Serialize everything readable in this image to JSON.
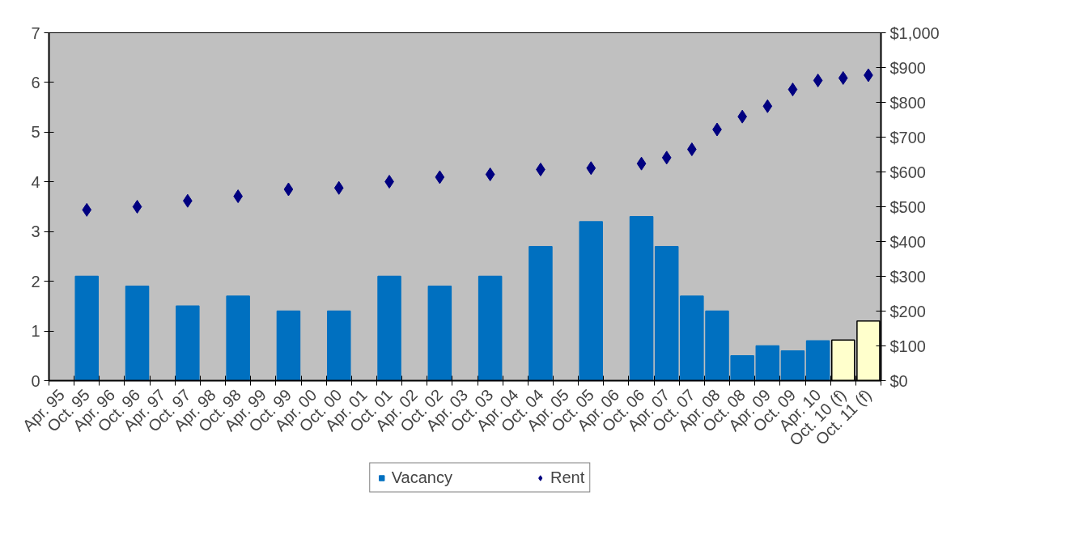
{
  "chart_data": {
    "type": "bar",
    "categories": [
      "Apr. 95",
      "Oct. 95",
      "Apr. 96",
      "Oct. 96",
      "Apr. 97",
      "Oct. 97",
      "Apr. 98",
      "Oct. 98",
      "Apr. 99",
      "Oct. 99",
      "Apr. 00",
      "Oct. 00",
      "Apr. 01",
      "Oct. 01",
      "Apr. 02",
      "Oct. 02",
      "Apr. 03",
      "Oct. 03",
      "Apr. 04",
      "Oct. 04",
      "Apr. 05",
      "Oct. 05",
      "Apr. 06",
      "Oct. 06",
      "Apr. 07",
      "Oct. 07",
      "Apr. 08",
      "Oct. 08",
      "Apr. 09",
      "Oct. 09",
      "Apr. 10",
      "Oct. 10 (f)",
      "Oct. 11 (f)"
    ],
    "series": [
      {
        "name": "Vacancy",
        "color": "#0070c0",
        "colors": [
          "#0070c0",
          "#0070c0",
          "#0070c0",
          "#0070c0",
          "#0070c0",
          "#0070c0",
          "#0070c0",
          "#0070c0",
          "#0070c0",
          "#0070c0",
          "#0070c0",
          "#0070c0",
          "#0070c0",
          "#0070c0",
          "#0070c0",
          "#0070c0",
          "#0070c0",
          "#0070c0",
          "#0070c0",
          "#0070c0",
          "#0070c0",
          "#0070c0",
          "#0070c0",
          "#0070c0",
          "#0070c0",
          "#0070c0",
          "#0070c0",
          "#0070c0",
          "#0070c0",
          "#0070c0",
          "#0070c0",
          "#ffffcc",
          "#ffffcc"
        ],
        "values": [
          null,
          2.1,
          null,
          1.9,
          null,
          1.5,
          null,
          1.7,
          null,
          1.4,
          null,
          1.4,
          null,
          2.1,
          null,
          1.9,
          null,
          2.1,
          null,
          2.7,
          null,
          3.2,
          null,
          3.3,
          2.7,
          1.7,
          1.4,
          0.5,
          0.7,
          0.6,
          0.8,
          0.82,
          1.2
        ]
      },
      {
        "name": "Rent",
        "type": "scatter",
        "axis": "y2",
        "marker": "diamond",
        "color": "#000080",
        "values": [
          null,
          491,
          null,
          500,
          null,
          517,
          null,
          530,
          null,
          550,
          null,
          554,
          null,
          572,
          null,
          585,
          null,
          593,
          null,
          607,
          null,
          611,
          null,
          624,
          641,
          665,
          722,
          759,
          789,
          837,
          863,
          870,
          878
        ]
      }
    ],
    "ylim": [
      0,
      7
    ],
    "yticks": [
      0,
      1,
      2,
      3,
      4,
      5,
      6,
      7
    ],
    "y2lim": [
      0,
      1000
    ],
    "y2ticks": [
      {
        "value": 0,
        "label": "$0"
      },
      {
        "value": 100,
        "label": "$100"
      },
      {
        "value": 200,
        "label": "$200"
      },
      {
        "value": 300,
        "label": "$300"
      },
      {
        "value": 400,
        "label": "$400"
      },
      {
        "value": 500,
        "label": "$500"
      },
      {
        "value": 600,
        "label": "$600"
      },
      {
        "value": 700,
        "label": "$700"
      },
      {
        "value": 800,
        "label": "$800"
      },
      {
        "value": 900,
        "label": "$900"
      },
      {
        "value": 1000,
        "label": "$1,000"
      }
    ],
    "grid": false,
    "legend": "bottom"
  }
}
